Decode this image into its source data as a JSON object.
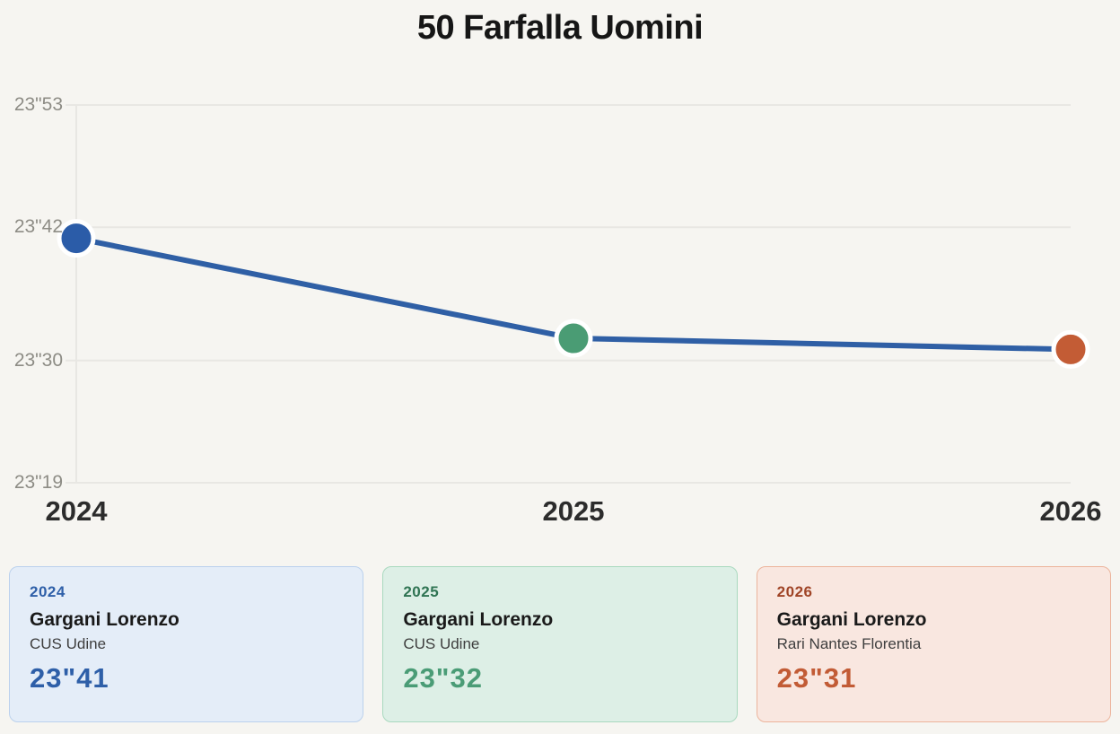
{
  "title": "50 Farfalla Uomini",
  "chart_data": {
    "type": "line",
    "title": "50 Farfalla Uomini",
    "categories": [
      "2024",
      "2025",
      "2026"
    ],
    "series": [
      {
        "name": "Gargani Lorenzo",
        "values": [
          23.41,
          23.32,
          23.31
        ]
      }
    ],
    "value_labels": [
      "23\"41",
      "23\"32",
      "23\"31"
    ],
    "yticks": [
      {
        "value": 23.53,
        "label": "23\"53"
      },
      {
        "value": 23.42,
        "label": "23\"42"
      },
      {
        "value": 23.3,
        "label": "23\"30"
      },
      {
        "value": 23.19,
        "label": "23\"19"
      }
    ],
    "ylim": [
      23.19,
      23.53
    ],
    "grid": true,
    "grid_color": "#e8e7e3",
    "line_color": "#2f5fa5",
    "point_colors": [
      "#2b5ca8",
      "#4a9c74",
      "#c35c35"
    ],
    "point_border_color": "#ffffff",
    "xlabel": "",
    "ylabel": ""
  },
  "cards": [
    {
      "year": "2024",
      "name": "Gargani Lorenzo",
      "club": "CUS Udine",
      "time": "23\"41",
      "bg": "#e4edf8",
      "border": "#bbd1ed",
      "year_color": "#2e5fa8",
      "time_color": "#2e5fa8"
    },
    {
      "year": "2025",
      "name": "Gargani Lorenzo",
      "club": "CUS Udine",
      "time": "23\"32",
      "bg": "#ddefe6",
      "border": "#a9d9bf",
      "year_color": "#2f7453",
      "time_color": "#4a9c76"
    },
    {
      "year": "2026",
      "name": "Gargani Lorenzo",
      "club": "Rari Nantes Florentia",
      "time": "23\"31",
      "bg": "#f9e7e0",
      "border": "#ecb49c",
      "year_color": "#a04527",
      "time_color": "#c25b35"
    }
  ]
}
